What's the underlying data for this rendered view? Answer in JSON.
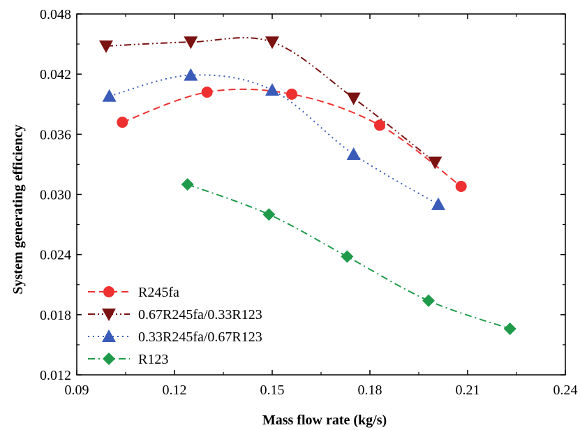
{
  "chart_data": {
    "type": "line",
    "title": "",
    "xlabel": "Mass flow rate (kg/s)",
    "ylabel": "System generating efficiency",
    "xlim": [
      0.09,
      0.24
    ],
    "ylim": [
      0.012,
      0.048
    ],
    "xticks": [
      0.09,
      0.12,
      0.15,
      0.18,
      0.21,
      0.24
    ],
    "yticks": [
      0.012,
      0.018,
      0.024,
      0.03,
      0.036,
      0.042,
      0.048
    ],
    "xtick_labels": [
      "0.09",
      "0.12",
      "0.15",
      "0.18",
      "0.21",
      "0.24"
    ],
    "ytick_labels": [
      "0.012",
      "0.018",
      "0.024",
      "0.030",
      "0.036",
      "0.042",
      "0.048"
    ],
    "grid": false,
    "legend_position": "bottom-left",
    "series": [
      {
        "name": "R245fa",
        "color": "#ee3030",
        "line_color": "#ee3030",
        "marker": "circle",
        "dash": "dashed",
        "x": [
          0.104,
          0.13,
          0.156,
          0.183,
          0.208
        ],
        "y": [
          0.0372,
          0.0402,
          0.04,
          0.0369,
          0.0308
        ]
      },
      {
        "name": "0.67R245fa/0.33R123",
        "color": "#7a1212",
        "line_color": "#7a1212",
        "marker": "triangle-down",
        "dash": "dash-dot-dot",
        "x": [
          0.099,
          0.125,
          0.15,
          0.175,
          0.2
        ],
        "y": [
          0.0448,
          0.0452,
          0.0452,
          0.0396,
          0.0332
        ]
      },
      {
        "name": "0.33R245fa/0.67R123",
        "color": "#3a5bb8",
        "line_color": "#3a5bb8",
        "marker": "triangle-up",
        "dash": "dotted",
        "x": [
          0.1,
          0.125,
          0.15,
          0.175,
          0.201
        ],
        "y": [
          0.0398,
          0.0419,
          0.0404,
          0.034,
          0.029
        ]
      },
      {
        "name": "R123",
        "color": "#1f9a4a",
        "line_color": "#1f9a4a",
        "marker": "diamond",
        "dash": "dash-dot",
        "x": [
          0.124,
          0.149,
          0.173,
          0.198,
          0.223
        ],
        "y": [
          0.031,
          0.028,
          0.0238,
          0.0194,
          0.0166
        ]
      }
    ]
  }
}
